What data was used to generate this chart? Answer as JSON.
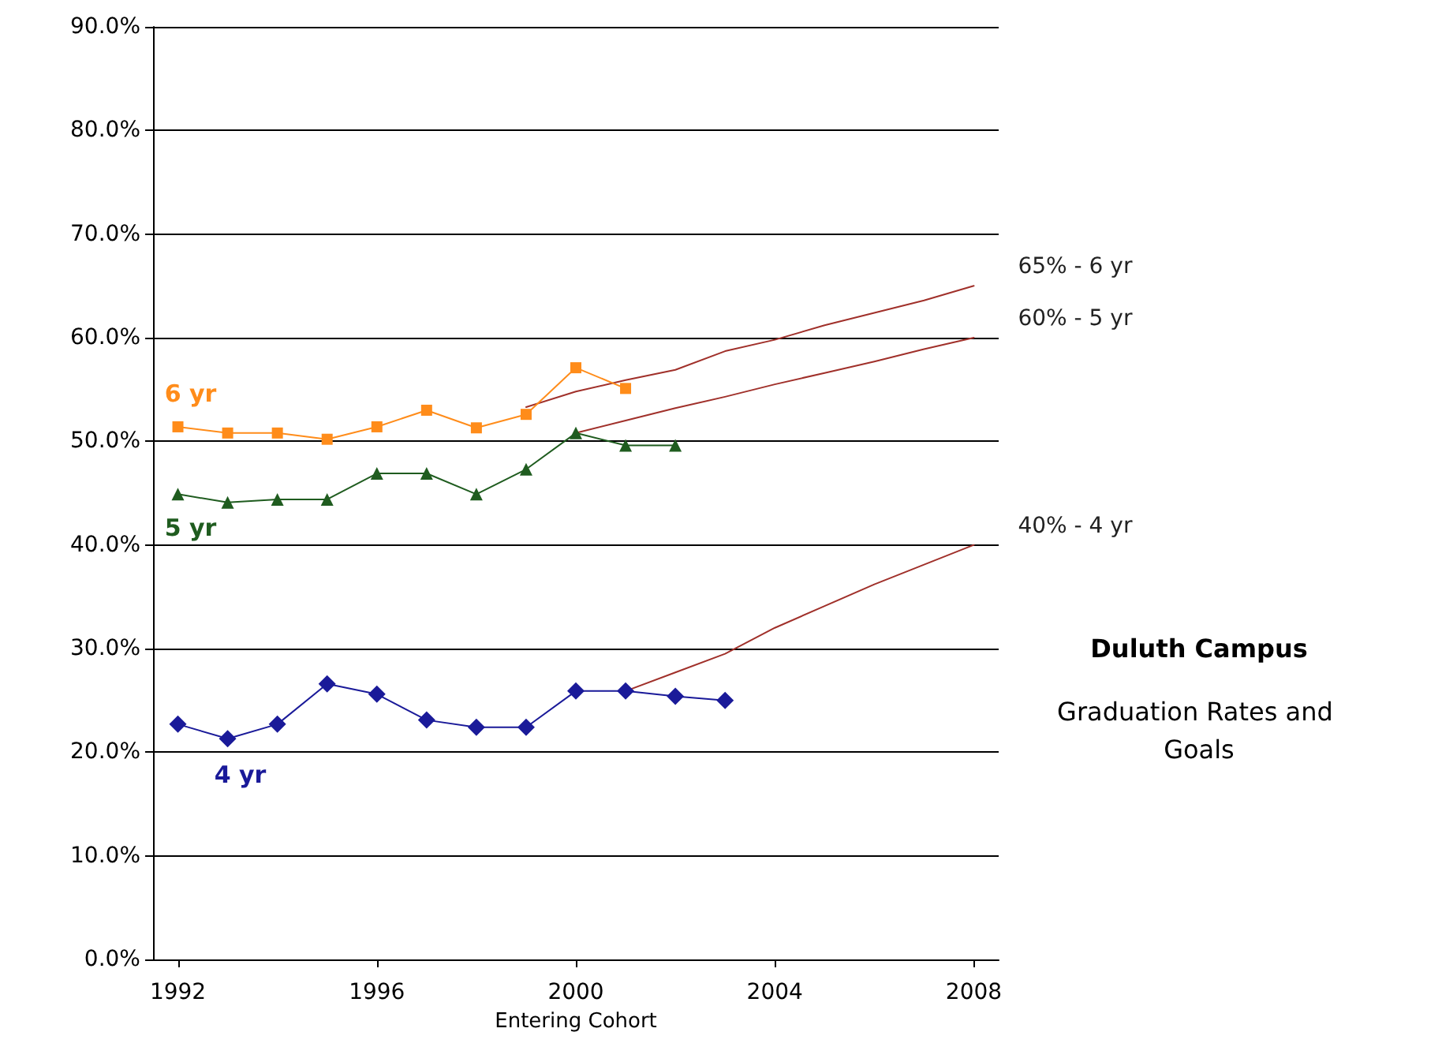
{
  "chart_data": {
    "type": "line",
    "title": "Duluth Campus",
    "subtitle": "Graduation Rates and Goals",
    "xlabel": "Entering Cohort",
    "xlim": [
      1991.5,
      2008.5
    ],
    "xticks": [
      1992,
      1996,
      2000,
      2004,
      2008
    ],
    "ylim": [
      0,
      90
    ],
    "yticks": [
      {
        "value": 0,
        "label": "0.0%"
      },
      {
        "value": 10,
        "label": "10.0%"
      },
      {
        "value": 20,
        "label": "20.0%"
      },
      {
        "value": 30,
        "label": "30.0%"
      },
      {
        "value": 40,
        "label": "40.0%"
      },
      {
        "value": 50,
        "label": "50.0%"
      },
      {
        "value": 60,
        "label": "60.0%"
      },
      {
        "value": 70,
        "label": "70.0%"
      },
      {
        "value": 80,
        "label": "80.0%"
      },
      {
        "value": 90,
        "label": "90.0%"
      }
    ],
    "grid": "y",
    "legend": false,
    "line_style": "solid",
    "series": [
      {
        "name": "6 yr",
        "color": "#ff8c1a",
        "marker": "square",
        "x": [
          1992,
          1993,
          1994,
          1995,
          1996,
          1997,
          1998,
          1999,
          2000,
          2001
        ],
        "values": [
          51.4,
          50.8,
          50.8,
          50.2,
          51.4,
          53.0,
          51.3,
          52.6,
          57.1,
          55.1
        ]
      },
      {
        "name": "5 yr",
        "color": "#1f5c1f",
        "marker": "triangle",
        "x": [
          1992,
          1993,
          1994,
          1995,
          1996,
          1997,
          1998,
          1999,
          2000,
          2001,
          2002
        ],
        "values": [
          44.9,
          44.1,
          44.4,
          44.4,
          46.9,
          46.9,
          44.9,
          47.3,
          50.8,
          49.6,
          49.6
        ]
      },
      {
        "name": "4 yr",
        "color": "#1a1a99",
        "marker": "diamond",
        "x": [
          1992,
          1993,
          1994,
          1995,
          1996,
          1997,
          1998,
          1999,
          2000,
          2001,
          2002,
          2003
        ],
        "values": [
          22.7,
          21.3,
          22.7,
          26.6,
          25.6,
          23.1,
          22.4,
          22.4,
          25.9,
          25.9,
          25.4,
          25.0
        ]
      },
      {
        "name": "65% - 6 yr",
        "color": "#a0302a",
        "marker": "none",
        "x": [
          1999,
          2000,
          2001,
          2002,
          2003,
          2004,
          2005,
          2006,
          2007,
          2008
        ],
        "values": [
          53.3,
          54.8,
          55.9,
          56.9,
          58.7,
          59.8,
          61.2,
          62.4,
          63.6,
          65
        ]
      },
      {
        "name": "60% - 5 yr",
        "color": "#a0302a",
        "marker": "none",
        "x": [
          2000,
          2001,
          2002,
          2003,
          2004,
          2005,
          2006,
          2007,
          2008
        ],
        "values": [
          50.8,
          52.0,
          53.2,
          54.3,
          55.5,
          56.6,
          57.7,
          58.9,
          60
        ]
      },
      {
        "name": "40% - 4 yr",
        "color": "#a0302a",
        "marker": "none",
        "x": [
          2001,
          2002,
          2003,
          2004,
          2005,
          2006,
          2007,
          2008
        ],
        "values": [
          25.9,
          27.7,
          29.5,
          32.0,
          34.1,
          36.2,
          38.1,
          40
        ]
      }
    ]
  }
}
